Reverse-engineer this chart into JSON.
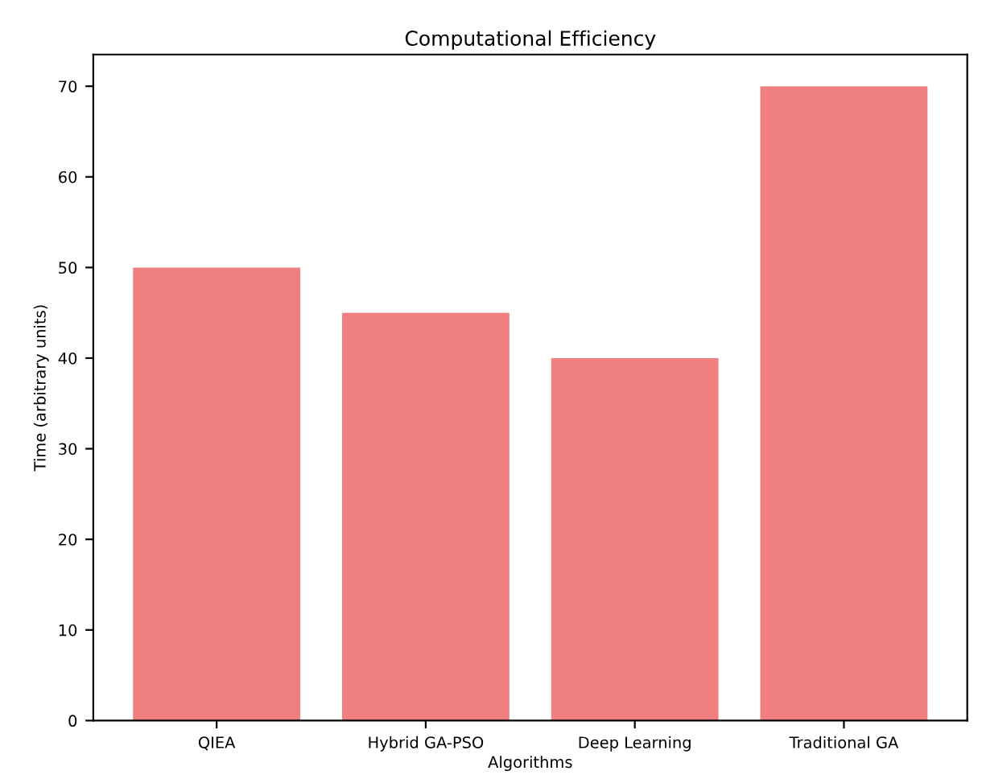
{
  "chart_data": {
    "type": "bar",
    "title": "Computational Efficiency",
    "xlabel": "Algorithms",
    "ylabel": "Time (arbitrary units)",
    "categories": [
      "QIEA",
      "Hybrid GA-PSO",
      "Deep Learning",
      "Traditional GA"
    ],
    "values": [
      50,
      45,
      40,
      70
    ],
    "color": "#f08080",
    "ylim": [
      0,
      73.5
    ],
    "yticks": [
      0,
      10,
      20,
      30,
      40,
      50,
      60,
      70
    ],
    "grid": false
  }
}
